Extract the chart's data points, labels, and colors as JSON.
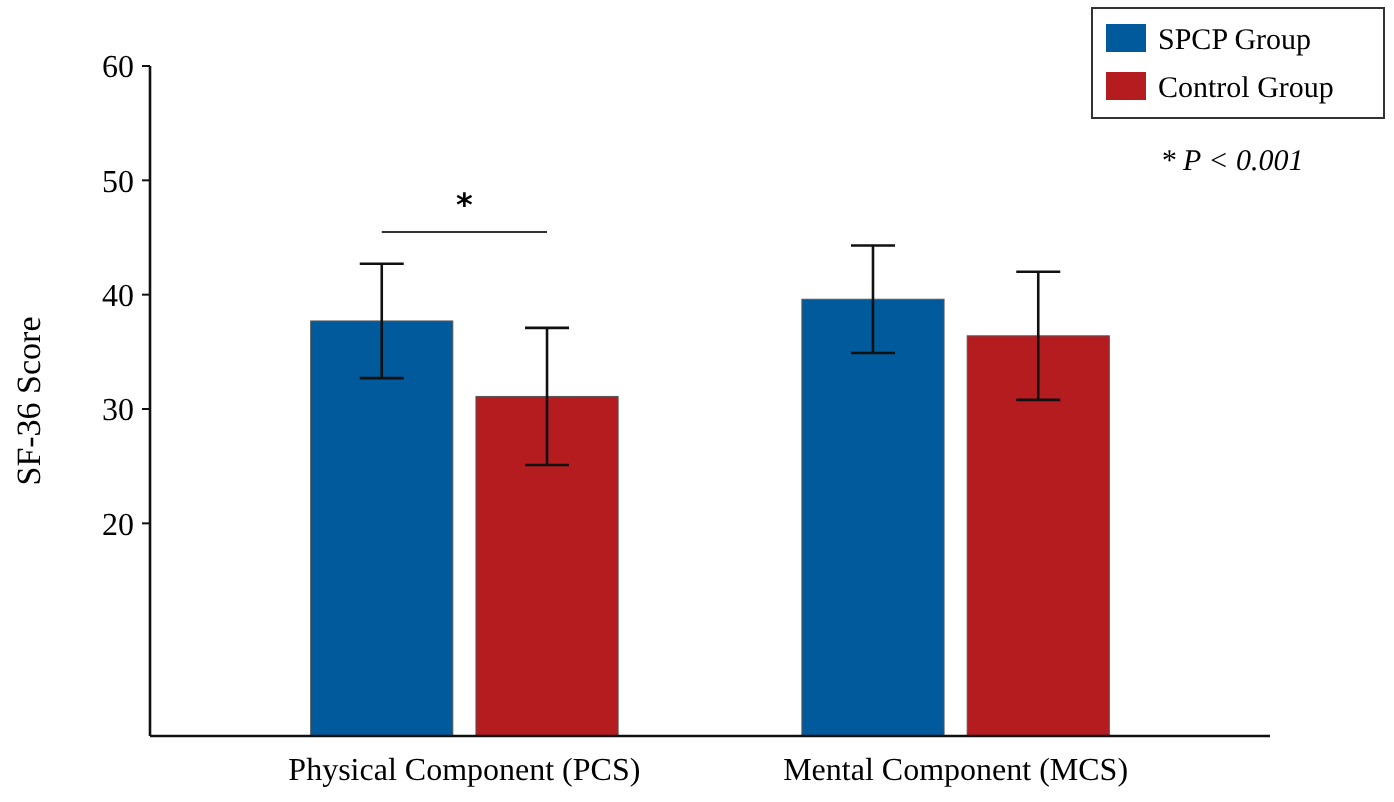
{
  "chart_data": {
    "type": "bar",
    "ylabel": "SF-36 Score",
    "categories": [
      "Physical Component (PCS)",
      "Mental Component (MCS)"
    ],
    "series": [
      {
        "name": "SPCP Group",
        "color": "#005a9c",
        "values": [
          37.7,
          39.6
        ],
        "errors": [
          5,
          4.7
        ]
      },
      {
        "name": "Control Group",
        "color": "#b51c1f",
        "values": [
          31.1,
          36.4
        ],
        "errors": [
          6,
          5.6
        ]
      }
    ],
    "ylim": [
      1.4,
      60
    ],
    "yticks": [
      20,
      30,
      40,
      50,
      60
    ],
    "legend": "top right",
    "annotations": [
      "*",
      "* P < 0.001"
    ]
  }
}
